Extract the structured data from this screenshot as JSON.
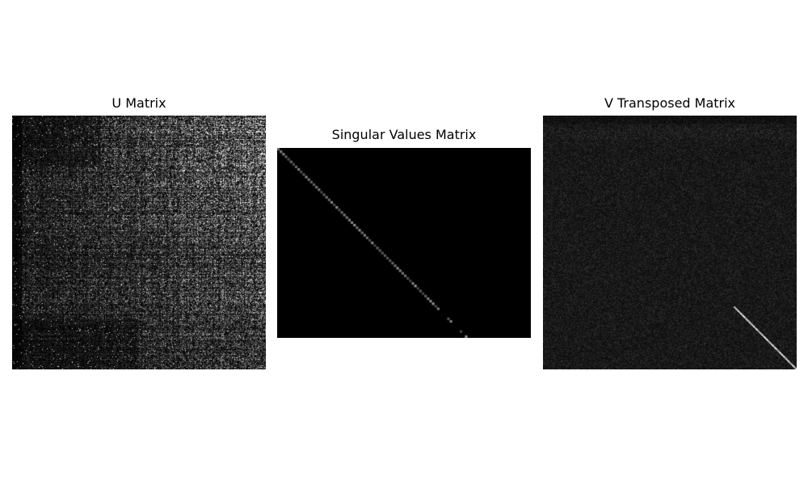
{
  "chart_data": [
    {
      "type": "heatmap",
      "title": "U Matrix",
      "colormap": "gray",
      "axes": "off",
      "rows": 100,
      "cols": 100,
      "description_values": "absolute values of left singular vectors; dense noisy texture, bright speckle concentrated toward top-right and right side, darker left columns"
    },
    {
      "type": "heatmap",
      "title": "Singular Values Matrix",
      "colormap": "gray",
      "axes": "off",
      "rows": 75,
      "cols": 100,
      "description_values": "diagonal matrix; all off-diagonal entries zero, faint nonzero values along main diagonal"
    },
    {
      "type": "heatmap",
      "title": "V Transposed Matrix",
      "colormap": "gray",
      "axes": "off",
      "rows": 100,
      "cols": 100,
      "description_values": "low-intensity uniform noise with bright identity-like diagonal segment in bottom-right corner"
    }
  ],
  "titles": {
    "u": "U Matrix",
    "s": "Singular Values Matrix",
    "v": "V Transposed Matrix"
  },
  "colors": {
    "background": "#ffffff",
    "matrix_background": "#000000",
    "text": "#000000"
  }
}
